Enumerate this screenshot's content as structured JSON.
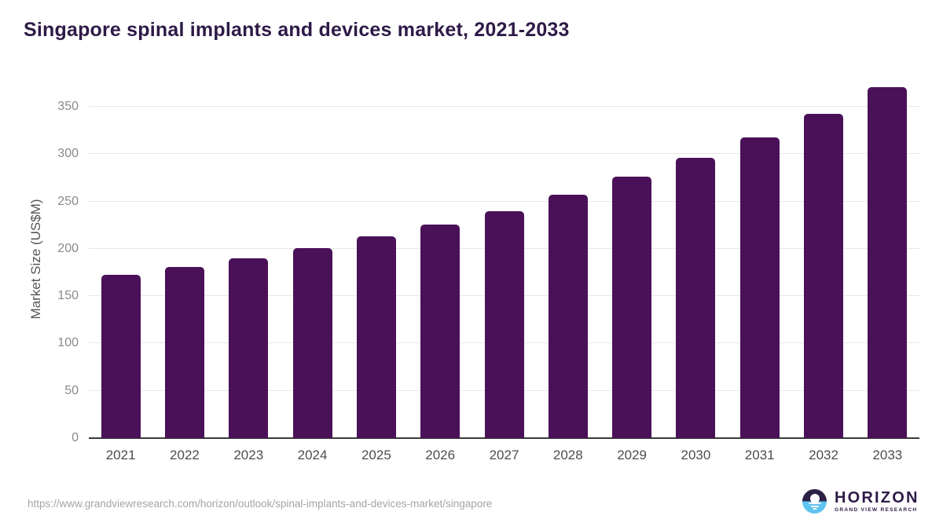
{
  "title": "Singapore spinal implants and devices market, 2021-2033",
  "chart_data": {
    "type": "bar",
    "title": "Singapore spinal implants and devices market, 2021-2033",
    "categories": [
      "2021",
      "2022",
      "2023",
      "2024",
      "2025",
      "2026",
      "2027",
      "2028",
      "2029",
      "2030",
      "2031",
      "2032",
      "2033"
    ],
    "values": [
      173,
      181,
      190,
      201,
      213,
      226,
      240,
      257,
      276,
      296,
      318,
      343,
      371
    ],
    "xlabel": "",
    "ylabel": "Market Size (US$M)",
    "ylim": [
      0,
      380
    ],
    "yticks": [
      0,
      50,
      100,
      150,
      200,
      250,
      300,
      350
    ],
    "grid": true,
    "legend": false,
    "bar_color": "#4a1158"
  },
  "footer": {
    "source_url": "https://www.grandviewresearch.com/horizon/outlook/spinal-implants-and-devices-market/singapore",
    "logo": {
      "wordmark": "HORIZON",
      "subtitle": "GRAND VIEW RESEARCH"
    }
  },
  "colors": {
    "background": "#ffffff",
    "bar": "#4a1158",
    "title_text": "#2e1a47",
    "gridline": "#e8e8e8",
    "axis_line": "#3a3a3a",
    "x_tick_text": "#4d4d4d",
    "y_tick_text": "#8a8a8a",
    "axis_title_text": "#555555",
    "url_text": "#a5a5a5",
    "logo_dark": "#2b2045",
    "logo_blue": "#5ec3f1",
    "logo_text": "#2e1a47"
  }
}
